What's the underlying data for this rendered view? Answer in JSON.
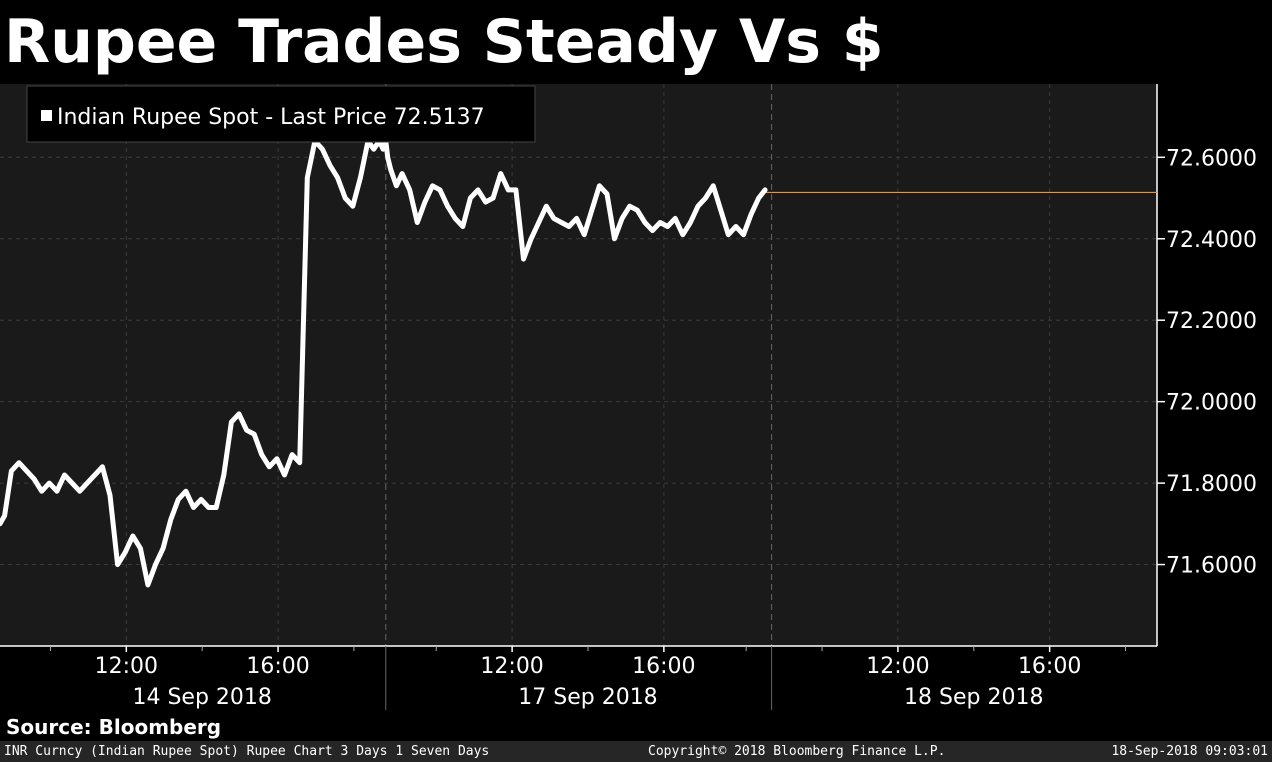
{
  "title": "Rupee Trades Steady Vs $",
  "source": "Source: Bloomberg",
  "footer": {
    "left": "INR Curncy (Indian Rupee Spot) Rupee Chart 3 Days 1 Seven Days",
    "middle": "Copyright© 2018 Bloomberg Finance L.P.",
    "right": "18-Sep-2018 09:03:01"
  },
  "colors": {
    "background": "#000000",
    "plot_area": "#1a1a1a",
    "series": "#ffffff",
    "last_price_line": "#f0932b",
    "grid": "#3a3a3a"
  },
  "chart_data": {
    "type": "line",
    "title": "Rupee Trades Steady Vs $",
    "legend": {
      "label": "Indian Rupee Spot - Last Price 72.5137",
      "position": "top-left"
    },
    "last_price": 72.5137,
    "y_axis": {
      "position": "right",
      "ylim": [
        71.4,
        72.78
      ],
      "ticks": [
        71.6,
        71.8,
        72.0,
        72.2,
        72.4,
        72.6
      ],
      "tick_labels": [
        "71.6000",
        "71.8000",
        "72.0000",
        "72.2000",
        "72.4000",
        "72.6000"
      ]
    },
    "x_axis": {
      "unit": "trading hours; each day shown from 08:40 to 18:50",
      "day_length_hours": 10.17,
      "days": [
        {
          "label": "14 Sep 2018",
          "ticks": [
            {
              "t": 3.33,
              "label": "12:00"
            },
            {
              "t": 7.33,
              "label": "16:00"
            }
          ]
        },
        {
          "label": "17 Sep 2018",
          "ticks": [
            {
              "t": 13.5,
              "label": "12:00"
            },
            {
              "t": 17.5,
              "label": "16:00"
            }
          ]
        },
        {
          "label": "18 Sep 2018",
          "ticks": [
            {
              "t": 23.67,
              "label": "12:00"
            },
            {
              "t": 27.67,
              "label": "16:00"
            }
          ]
        }
      ],
      "minor_ticks": [
        1.33,
        5.33,
        9.33,
        11.5,
        15.5,
        19.67,
        21.67,
        25.67,
        29.67
      ],
      "xlim": [
        0,
        30.5
      ]
    },
    "grid": true,
    "series": [
      {
        "name": "Indian Rupee Spot",
        "x": [
          0,
          0.12,
          0.3,
          0.5,
          0.7,
          0.9,
          1.1,
          1.3,
          1.5,
          1.7,
          1.9,
          2.1,
          2.3,
          2.5,
          2.7,
          2.9,
          3.1,
          3.3,
          3.5,
          3.7,
          3.9,
          4.1,
          4.3,
          4.5,
          4.7,
          4.9,
          5.1,
          5.3,
          5.5,
          5.7,
          5.9,
          6.1,
          6.3,
          6.5,
          6.7,
          6.9,
          7.1,
          7.3,
          7.5,
          7.7,
          7.9,
          8.1,
          8.3,
          8.5,
          8.7,
          8.9,
          9.1,
          9.3,
          9.5,
          9.7,
          9.85,
          10.0,
          10.1,
          10.17,
          10.22,
          10.3,
          10.45,
          10.6,
          10.8,
          11.0,
          11.2,
          11.4,
          11.6,
          11.8,
          12.0,
          12.2,
          12.4,
          12.6,
          12.8,
          13.0,
          13.2,
          13.4,
          13.6,
          13.8,
          14.0,
          14.2,
          14.4,
          14.6,
          14.8,
          15.0,
          15.2,
          15.4,
          15.6,
          15.8,
          16.0,
          16.2,
          16.4,
          16.6,
          16.8,
          17.0,
          17.2,
          17.4,
          17.6,
          17.8,
          18.0,
          18.2,
          18.4,
          18.6,
          18.8,
          19.0,
          19.2,
          19.4,
          19.6,
          19.8,
          20.0,
          20.17
        ],
        "values": [
          71.7,
          71.72,
          71.83,
          71.85,
          71.83,
          71.81,
          71.78,
          71.8,
          71.78,
          71.82,
          71.8,
          71.78,
          71.8,
          71.82,
          71.84,
          71.77,
          71.6,
          71.63,
          71.67,
          71.64,
          71.55,
          71.6,
          71.64,
          71.71,
          71.76,
          71.78,
          71.74,
          71.76,
          71.74,
          71.74,
          71.82,
          71.95,
          71.97,
          71.93,
          71.92,
          71.87,
          71.84,
          71.86,
          71.82,
          71.87,
          71.85,
          72.55,
          72.64,
          72.62,
          72.58,
          72.55,
          72.5,
          72.48,
          72.55,
          72.64,
          72.62,
          72.64,
          72.62,
          72.64,
          72.6,
          72.57,
          72.53,
          72.56,
          72.52,
          72.44,
          72.49,
          72.53,
          72.52,
          72.48,
          72.45,
          72.43,
          72.5,
          72.52,
          72.49,
          72.5,
          72.56,
          72.52,
          72.52,
          72.35,
          72.4,
          72.44,
          72.48,
          72.45,
          72.44,
          72.43,
          72.45,
          72.41,
          72.47,
          72.53,
          72.51,
          72.4,
          72.45,
          72.48,
          72.47,
          72.44,
          72.42,
          72.44,
          72.43,
          72.45,
          72.41,
          72.44,
          72.48,
          72.5,
          72.53,
          72.47,
          72.41,
          72.43,
          72.41,
          72.46,
          72.5,
          72.52
        ]
      }
    ]
  }
}
